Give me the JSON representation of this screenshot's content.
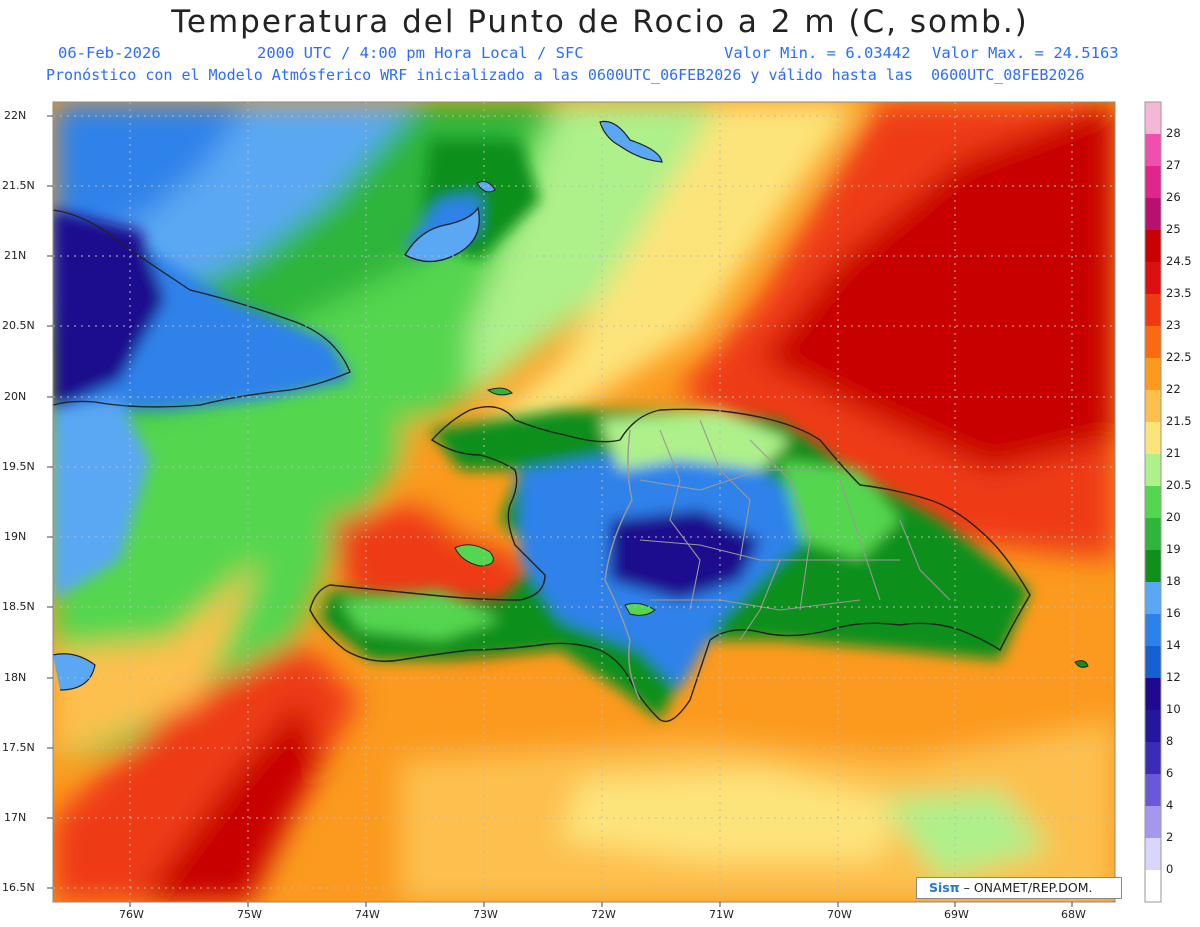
{
  "title": "Temperatura del Punto de Rocio a 2 m (C, somb.)",
  "subtitle": {
    "date": "06-Feb-2026",
    "time": "2000 UTC / 4:00 pm Hora Local / SFC",
    "min": "Valor Min. = 6.03442",
    "max": "Valor Max. = 24.5163",
    "model": "Pronóstico con el Modelo Atmósferico WRF inicializado a las 0600UTC_06FEB2026 y válido hasta las  0600UTC_08FEB2026"
  },
  "lat_labels": [
    "22N",
    "21.5N",
    "21N",
    "20.5N",
    "20N",
    "19.5N",
    "19N",
    "18.5N",
    "18N",
    "17.5N",
    "17N",
    "16.5N"
  ],
  "lon_labels": [
    "76W",
    "75W",
    "74W",
    "73W",
    "72W",
    "71W",
    "70W",
    "69W",
    "68W"
  ],
  "colorbar": {
    "labels": [
      "28",
      "27",
      "26",
      "25",
      "24.5",
      "23.5",
      "23",
      "22.5",
      "22",
      "21.5",
      "21",
      "20.5",
      "20",
      "19",
      "18",
      "16",
      "14",
      "12",
      "10",
      "8",
      "6",
      "4",
      "2",
      "0"
    ],
    "colors": [
      "#f6b6d6",
      "#f04fae",
      "#e0258f",
      "#b8106e",
      "#c80000",
      "#dc1010",
      "#ee3a12",
      "#fa6a12",
      "#fb9a1e",
      "#fdc04d",
      "#fde47a",
      "#aef08a",
      "#55d650",
      "#2fb53a",
      "#108f1c",
      "#5aa8f3",
      "#2d82ea",
      "#1660d2",
      "#1f0a8e",
      "#25169e",
      "#3b2cb8",
      "#6a59d6",
      "#a596ee",
      "#d9d6fb",
      "#ffffff"
    ]
  },
  "credit": {
    "brand": "Sisπ",
    "org": "– ONAMET/REP.DOM."
  }
}
